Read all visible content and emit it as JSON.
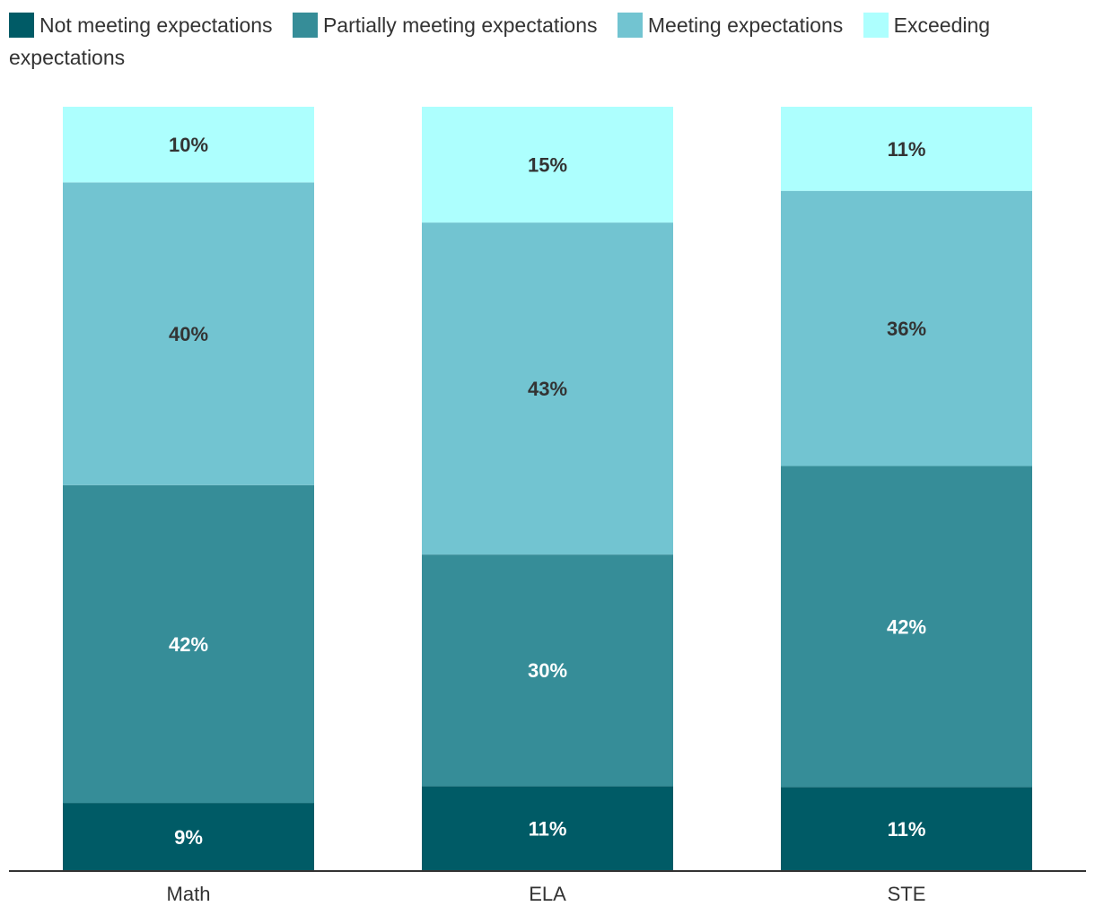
{
  "chart_data": {
    "type": "bar",
    "stacked": true,
    "title": "",
    "xlabel": "",
    "ylabel": "",
    "ylim": [
      0,
      100
    ],
    "grid": false,
    "legend_position": "top",
    "categories": [
      "Math",
      "ELA",
      "STE"
    ],
    "series": [
      {
        "name": "Not meeting expectations",
        "color": "#005b66",
        "label_color": "#ffffff",
        "values": [
          9,
          11,
          11
        ],
        "labels": [
          "9%",
          "11%",
          "11%"
        ]
      },
      {
        "name": "Partially meeting expectations",
        "color": "#368d98",
        "label_color": "#ffffff",
        "values": [
          42,
          30,
          42
        ],
        "labels": [
          "42%",
          "30%",
          "42%"
        ]
      },
      {
        "name": "Meeting expectations",
        "color": "#72c4d1",
        "label_color": "#333333",
        "values": [
          40,
          43,
          36
        ],
        "labels": [
          "40%",
          "43%",
          "36%"
        ]
      },
      {
        "name": "Exceeding expectations",
        "color": "#adfffe",
        "label_color": "#333333",
        "values": [
          10,
          15,
          11
        ],
        "labels": [
          "10%",
          "15%",
          "11%"
        ]
      }
    ]
  }
}
